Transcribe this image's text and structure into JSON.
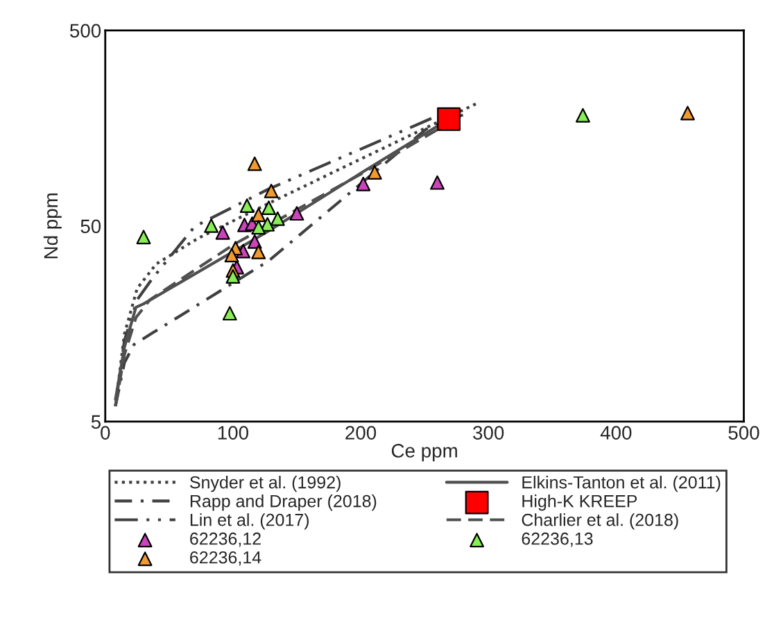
{
  "chart_data": {
    "type": "scatter",
    "xlabel": "Ce ppm",
    "ylabel": "Nd ppm",
    "log": "y",
    "xlim": [
      0,
      500
    ],
    "xticks": [
      0,
      100,
      200,
      300,
      400,
      500
    ],
    "ylim": [
      5,
      500
    ],
    "yticks": [
      5,
      50,
      500
    ],
    "grid": false,
    "legend": "bottom",
    "series": [
      {
        "name": "Snyder et al. (1992)",
        "type": "line",
        "line_style": "dotted",
        "marker": "none",
        "color": "#404040",
        "x": [
          8,
          15,
          25,
          40,
          73,
          127.5,
          200,
          290.5
        ],
        "values": [
          6,
          14,
          24,
          32,
          43.4,
          65,
          110,
          211
        ]
      },
      {
        "name": "Rapp and Draper (2018)",
        "type": "line",
        "line_style": "dashdot",
        "marker": "none",
        "color": "#404040",
        "x": [
          8,
          15,
          22.5,
          37,
          127.5,
          251,
          280
        ],
        "values": [
          6,
          10,
          12.4,
          14.2,
          33,
          156,
          185
        ]
      },
      {
        "name": "Lin et al. (2017)",
        "type": "line",
        "line_style": "dashdotdot",
        "marker": "none",
        "color": "#404040",
        "x": [
          8,
          15,
          25,
          37,
          70,
          127.5,
          276
        ],
        "values": [
          6,
          13,
          21,
          27,
          49.7,
          77,
          203
        ]
      },
      {
        "name": "62236,12",
        "marker": "triangle",
        "color": "#cc44bb",
        "x": [
          92,
          109,
          115,
          117,
          108,
          103,
          150,
          202,
          260
        ],
        "values": [
          46.3,
          50.6,
          51.4,
          41.6,
          37.2,
          30.8,
          58,
          82,
          83.4
        ]
      },
      {
        "name": "62236,14",
        "marker": "triangle",
        "color": "#f09a30",
        "x": [
          117,
          130,
          120,
          102,
          99,
          120,
          100,
          211,
          456
        ],
        "values": [
          104,
          75.5,
          57,
          38.5,
          35.5,
          36.8,
          29.6,
          94,
          189
        ]
      },
      {
        "name": "Elkins-Tanton et al. (2011)",
        "type": "line",
        "line_style": "solid",
        "marker": "none",
        "color": "#505050",
        "x": [
          8,
          15,
          24,
          30,
          127.5,
          200,
          269
        ],
        "values": [
          6.5,
          12,
          19.2,
          20,
          47,
          93,
          176
        ]
      },
      {
        "name": "High-K KREEP",
        "marker": "square",
        "color": "#ff0000",
        "x": [
          269
        ],
        "values": [
          176
        ]
      },
      {
        "name": "Charlier et al. (2018)",
        "type": "line",
        "line_style": "dashed",
        "marker": "none",
        "color": "#505050",
        "x": [
          8,
          15,
          24,
          35,
          100,
          200,
          280
        ],
        "values": [
          6,
          11,
          17,
          21,
          40,
          92,
          185
        ]
      },
      {
        "name": "62236,13",
        "marker": "triangle",
        "color": "#88ee55",
        "x": [
          30,
          83,
          111,
          128,
          135,
          127,
          120,
          100,
          97.5,
          374
        ],
        "values": [
          43.9,
          50.2,
          63.5,
          62,
          54.5,
          51,
          49.2,
          27.6,
          17.9,
          184
        ]
      }
    ]
  }
}
